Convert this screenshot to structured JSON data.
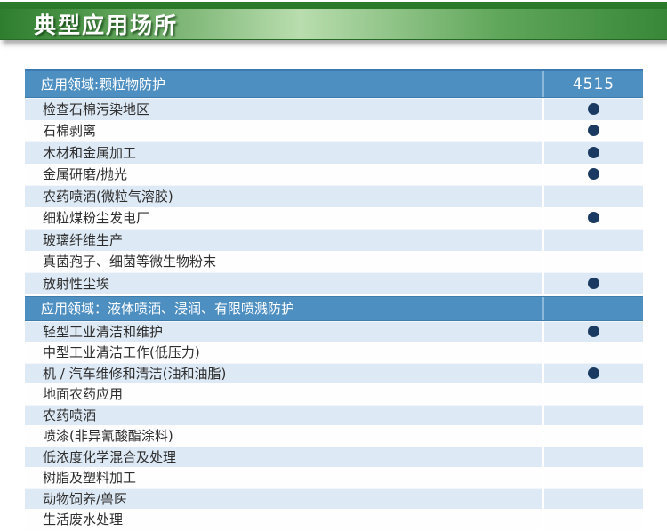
{
  "title_bar": {
    "title": "典型应用场所"
  },
  "table": {
    "product_code": "4515",
    "sections": [
      {
        "header": "应用领域:颗粒物防护",
        "header_value": "4515",
        "rows": [
          {
            "label": "检查石棉污染地区",
            "dot": true
          },
          {
            "label": "石棉剥离",
            "dot": true
          },
          {
            "label": "木材和金属加工",
            "dot": true
          },
          {
            "label": "金属研磨/抛光",
            "dot": true
          },
          {
            "label": "农药喷洒(微粒气溶胶)",
            "dot": false
          },
          {
            "label": "细粒煤粉尘发电厂",
            "dot": true
          },
          {
            "label": "玻璃纤维生产",
            "dot": false
          },
          {
            "label": "真菌孢子、细菌等微生物粉末",
            "dot": false
          },
          {
            "label": "放射性尘埃",
            "dot": true
          }
        ]
      },
      {
        "header": "应用领域：液体喷洒、浸润、有限喷溅防护",
        "header_value": "",
        "rows": [
          {
            "label": "轻型工业清洁和维护",
            "dot": true
          },
          {
            "label": "中型工业清洁工作(低压力)",
            "dot": false
          },
          {
            "label": "机 / 汽车维修和清洁(油和油脂)",
            "dot": true
          },
          {
            "label": "地面农药应用",
            "dot": false
          },
          {
            "label": "农药喷洒",
            "dot": false
          },
          {
            "label": "喷漆(非异氰酸酯涂料)",
            "dot": false
          },
          {
            "label": "低浓度化学混合及处理",
            "dot": false
          },
          {
            "label": "树脂及塑料加工",
            "dot": false
          },
          {
            "label": "动物饲养/兽医",
            "dot": false
          },
          {
            "label": "生活废水处理",
            "dot": false
          }
        ]
      }
    ]
  },
  "colors": {
    "banner_stripe_green": "#2b7a2b",
    "banner_green_dark": "#2e7d2e",
    "banner_green_light": "#b9ddae",
    "header_blue": "#4e8fc2",
    "row_light_blue": "#dde9f4",
    "row_white": "#fefefe",
    "dot_navy": "#1a3a62",
    "row_text": "#2e2e2e"
  }
}
